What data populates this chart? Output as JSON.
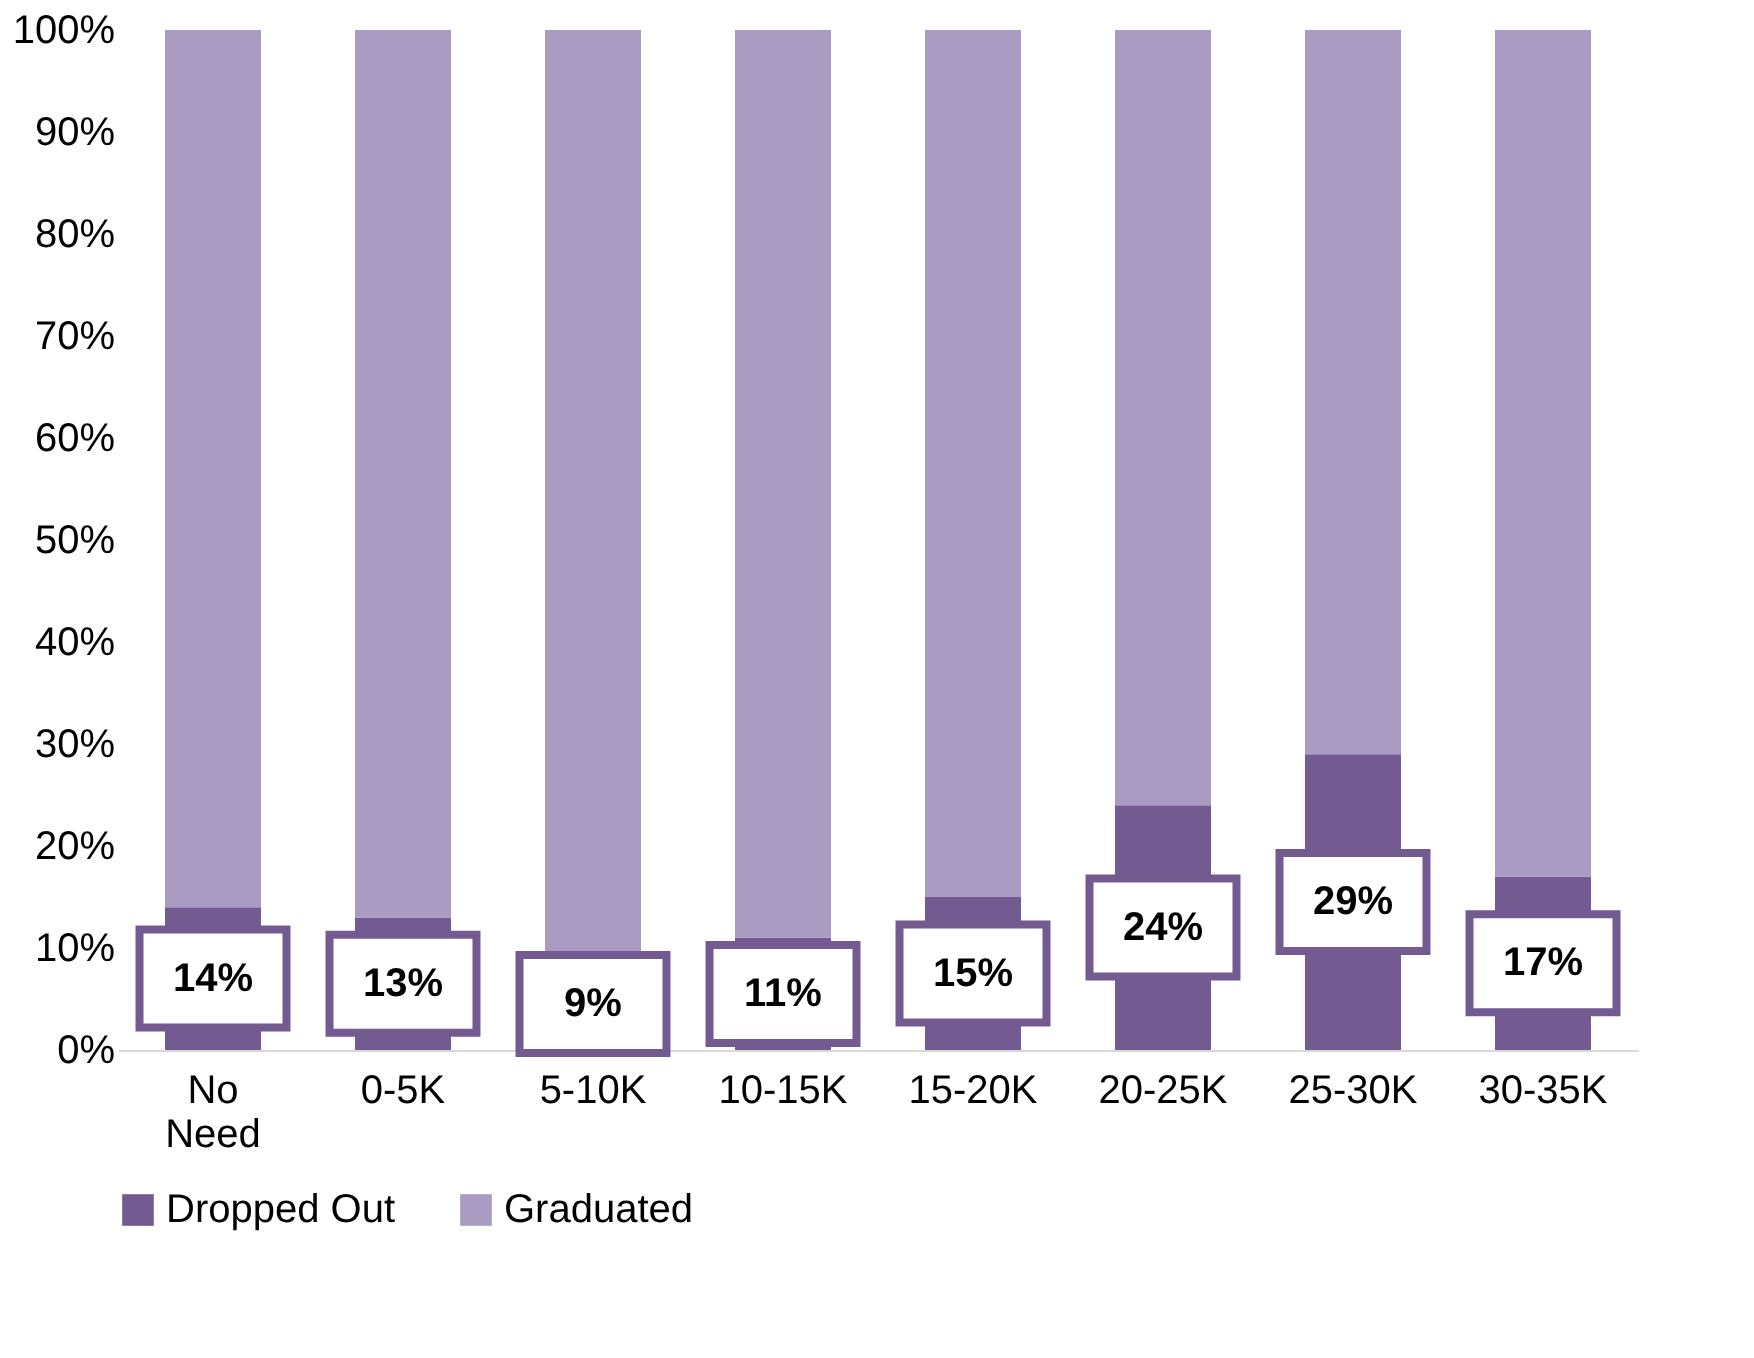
{
  "chart_data": {
    "type": "bar",
    "stacked": true,
    "categories": [
      "No Need",
      "0-5K",
      "5-10K",
      "10-15K",
      "15-20K",
      "20-25K",
      "25-30K",
      "30-35K"
    ],
    "series": [
      {
        "name": "Dropped Out",
        "color": "#735a91",
        "values": [
          14,
          13,
          9,
          11,
          15,
          24,
          29,
          17
        ],
        "value_labels": [
          "14%",
          "13%",
          "9%",
          "11%",
          "15%",
          "24%",
          "29%",
          "17%"
        ]
      },
      {
        "name": "Graduated",
        "color": "#a99bc1",
        "values": [
          86,
          87,
          91,
          89,
          85,
          76,
          71,
          83
        ]
      }
    ],
    "ylim": [
      0,
      100
    ],
    "yticks": [
      {
        "value": 0,
        "label": "0%"
      },
      {
        "value": 10,
        "label": "10%"
      },
      {
        "value": 20,
        "label": "20%"
      },
      {
        "value": 30,
        "label": "30%"
      },
      {
        "value": 40,
        "label": "40%"
      },
      {
        "value": 50,
        "label": "50%"
      },
      {
        "value": 60,
        "label": "60%"
      },
      {
        "value": 70,
        "label": "70%"
      },
      {
        "value": 80,
        "label": "80%"
      },
      {
        "value": 90,
        "label": "90%"
      },
      {
        "value": 100,
        "label": "100%"
      }
    ],
    "grid": false,
    "legend": "bottom"
  }
}
